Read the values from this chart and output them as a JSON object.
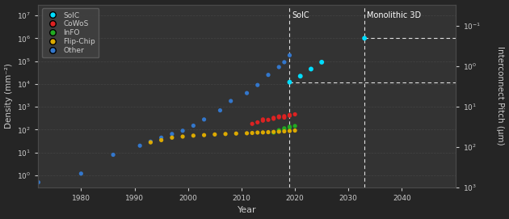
{
  "bg_color": "#252525",
  "plot_bg_color": "#333333",
  "grid_color": "#4a4a4a",
  "text_color": "#cccccc",
  "xlabel": "Year",
  "ylabel_left": "Density (mm⁻²)",
  "ylabel_right": "Interconnect Pitch (µm)",
  "xlim": [
    1972,
    2050
  ],
  "ylim_left": [
    0.3,
    30000000.0
  ],
  "ylim_right": [
    0.03,
    1000.0
  ],
  "xticks": [
    1980,
    1990,
    2000,
    2010,
    2020,
    2030,
    2040
  ],
  "other_data": {
    "color": "#3377cc",
    "years": [
      1972,
      1980,
      1986,
      1991,
      1993,
      1995,
      1997,
      1999,
      2001,
      2003,
      2006,
      2008,
      2011,
      2013,
      2015,
      2017,
      2018,
      2019
    ],
    "density": [
      0.5,
      1.2,
      8,
      20,
      30,
      45,
      65,
      90,
      150,
      280,
      700,
      1800,
      4000,
      9000,
      25000,
      55000,
      90000,
      180000
    ]
  },
  "cowos_data": {
    "color": "#dd2222",
    "years": [
      2012,
      2013,
      2014,
      2014,
      2015,
      2016,
      2016,
      2017,
      2017,
      2018,
      2018,
      2019,
      2019,
      2020
    ],
    "density": [
      180,
      210,
      250,
      280,
      270,
      300,
      330,
      350,
      380,
      340,
      390,
      410,
      440,
      470
    ]
  },
  "info_data": {
    "color": "#22aa22",
    "years": [
      2016,
      2017,
      2017,
      2018,
      2018,
      2019,
      2019,
      2020
    ],
    "density": [
      75,
      85,
      95,
      100,
      115,
      125,
      135,
      145
    ]
  },
  "flipchip_data": {
    "color": "#ddaa00",
    "years": [
      1993,
      1995,
      1997,
      1999,
      2001,
      2003,
      2005,
      2007,
      2009,
      2011,
      2012,
      2013,
      2014,
      2015,
      2016,
      2017,
      2018,
      2019,
      2020
    ],
    "density": [
      28,
      35,
      45,
      50,
      55,
      58,
      62,
      65,
      68,
      70,
      72,
      75,
      76,
      78,
      80,
      82,
      85,
      88,
      92
    ]
  },
  "soic_future_years": [
    2019,
    2021,
    2023,
    2025
  ],
  "soic_future_density": [
    12000,
    22000,
    45000,
    90000
  ],
  "soic_color": "#00ddff",
  "mono3d_year": 2033,
  "mono3d_density": 1000000,
  "horiz_line_low_y": 12000,
  "horiz_line_high_y": 1000000,
  "vline_soic_x": 2019,
  "vline_mono_x": 2033,
  "soic_label": "SoIC",
  "mono_label": "Monolithic 3D",
  "legend_items": [
    {
      "label": "SoIC",
      "color": "#00ddff"
    },
    {
      "label": "CoWoS",
      "color": "#dd2222"
    },
    {
      "label": "InFO",
      "color": "#22aa22"
    },
    {
      "label": "Flip-Chip",
      "color": "#ddaa00"
    },
    {
      "label": "Other",
      "color": "#3377cc"
    }
  ]
}
